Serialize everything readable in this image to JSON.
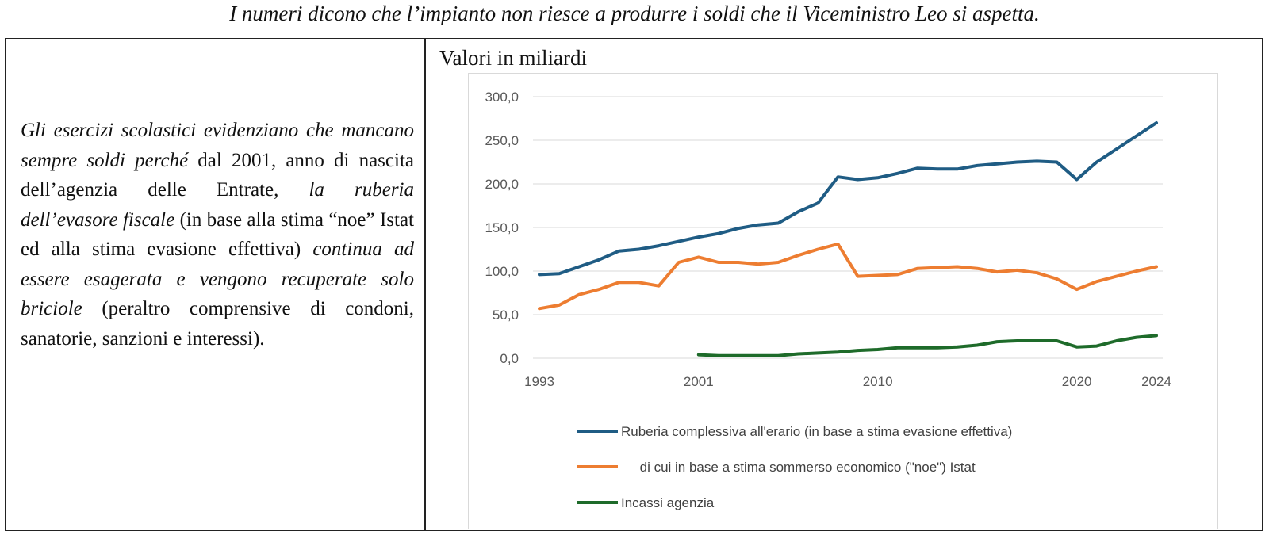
{
  "header": {
    "title": "I numeri dicono che l’impianto non riesce a produrre i soldi che il Viceministro Leo si aspetta."
  },
  "text": {
    "p1_italic": "Gli esercizi scolastici evidenziano che mancano sempre soldi perché",
    "p2": " dal 2001, anno di nascita dell’agenzia delle Entrate, ",
    "p3_italic": "la ruberia dell’evasore fiscale",
    "p4": " (in base alla stima “noe” Istat ed alla stima evasione effettiva) ",
    "p5_italic": "continua ad essere esagerata e vengono recuperate solo briciole",
    "p6": " (peraltro comprensive di condoni, sanatorie, sanzioni e interessi)."
  },
  "chart_data": {
    "type": "line",
    "title": "Valori in miliardi",
    "xlabel": "",
    "ylabel": "",
    "x": [
      1993,
      1994,
      1995,
      1996,
      1997,
      1998,
      1999,
      2000,
      2001,
      2002,
      2003,
      2004,
      2005,
      2006,
      2007,
      2008,
      2009,
      2010,
      2011,
      2012,
      2013,
      2014,
      2015,
      2016,
      2017,
      2018,
      2019,
      2020,
      2021,
      2022,
      2023,
      2024
    ],
    "x_tick_labels": [
      "1993",
      "2001",
      "2010",
      "2020",
      "2024"
    ],
    "y_tick_labels": [
      "300,0",
      "250,0",
      "200,0",
      "150,0",
      "100,0",
      "50,0",
      "0,0"
    ],
    "ylim": [
      0,
      300
    ],
    "grid": true,
    "legend_position": "bottom",
    "series": [
      {
        "name": "Ruberia complessiva all'erario (in base a stima evasione effettiva)",
        "color": "#1f5c84",
        "values": [
          96,
          97,
          105,
          113,
          123,
          125,
          129,
          134,
          139,
          143,
          149,
          153,
          155,
          168,
          178,
          208,
          205,
          207,
          212,
          218,
          217,
          217,
          221,
          223,
          225,
          226,
          225,
          205,
          225,
          240,
          255,
          270
        ]
      },
      {
        "name": "     di cui in base a stima sommerso economico (\"noe\") Istat",
        "color": "#ed7d31",
        "values": [
          57,
          61,
          73,
          79,
          87,
          87,
          83,
          110,
          116,
          110,
          110,
          108,
          110,
          118,
          125,
          131,
          94,
          95,
          96,
          103,
          104,
          105,
          103,
          99,
          101,
          98,
          91,
          79,
          88,
          94,
          100,
          105
        ]
      },
      {
        "name": "Incassi agenzia",
        "color": "#1e6b2a",
        "values": [
          null,
          null,
          null,
          null,
          null,
          null,
          null,
          null,
          4,
          3,
          3,
          3,
          3,
          5,
          6,
          7,
          9,
          10,
          12,
          12,
          12,
          13,
          15,
          19,
          20,
          20,
          20,
          13,
          14,
          20,
          24,
          26
        ]
      }
    ]
  }
}
